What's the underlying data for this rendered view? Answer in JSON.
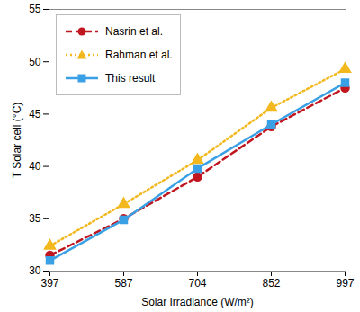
{
  "chart_data": {
    "type": "line",
    "x_label": "Solar Irradiance (W/m²)",
    "y_label": "T Solar cell (°C)",
    "categories": [
      "397",
      "587",
      "704",
      "852",
      "997"
    ],
    "series": [
      {
        "name": "Nasrin et al.",
        "color": "#c0161f",
        "marker": "circle",
        "line_style": "dashed",
        "values": [
          31.5,
          35.0,
          39.0,
          43.8,
          47.5
        ]
      },
      {
        "name": "Rahman et al.",
        "color": "#f2b81d",
        "marker": "triangle",
        "line_style": "dotted",
        "values": [
          32.4,
          36.4,
          40.6,
          45.6,
          49.3
        ]
      },
      {
        "name": "This result",
        "color": "#3aa0e6",
        "marker": "square",
        "line_style": "solid",
        "values": [
          31.0,
          34.9,
          39.8,
          44.0,
          48.0
        ]
      }
    ],
    "ylim": [
      30,
      55
    ],
    "yticks": [
      30,
      35,
      40,
      45,
      50,
      55
    ],
    "grid": false,
    "legend": "top-left"
  }
}
